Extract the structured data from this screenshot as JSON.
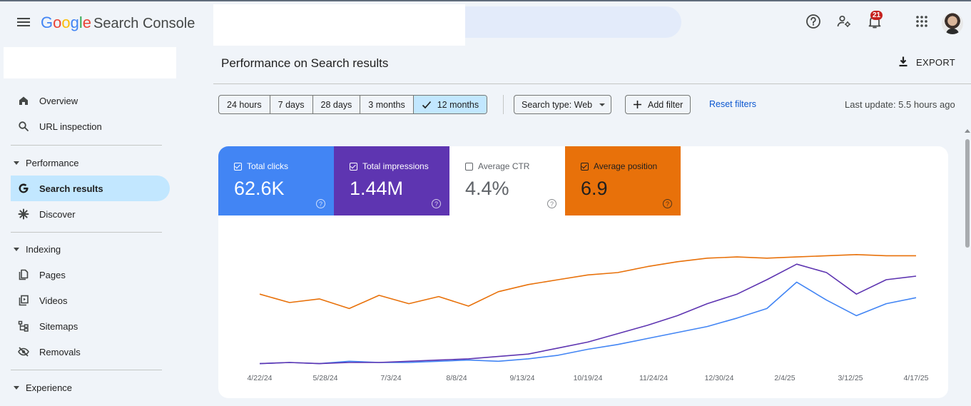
{
  "header": {
    "logo_google": "Google",
    "logo_product": "Search Console",
    "notification_count": "21"
  },
  "sidebar": {
    "items": [
      {
        "label": "Overview",
        "icon": "home-icon"
      },
      {
        "label": "URL inspection",
        "icon": "search-icon"
      }
    ],
    "sections": [
      {
        "label": "Performance",
        "items": [
          {
            "label": "Search results",
            "icon": "google-g-icon",
            "active": true
          },
          {
            "label": "Discover",
            "icon": "asterisk-icon"
          }
        ]
      },
      {
        "label": "Indexing",
        "items": [
          {
            "label": "Pages",
            "icon": "pages-icon"
          },
          {
            "label": "Videos",
            "icon": "video-icon"
          },
          {
            "label": "Sitemaps",
            "icon": "sitemap-icon"
          },
          {
            "label": "Removals",
            "icon": "eye-off-icon"
          }
        ]
      },
      {
        "label": "Experience",
        "items": []
      }
    ]
  },
  "main": {
    "title": "Performance on Search results",
    "export_label": "EXPORT",
    "date_ranges": [
      "24 hours",
      "7 days",
      "28 days",
      "3 months",
      "12 months"
    ],
    "selected_range": "12 months",
    "search_type_label": "Search type: Web",
    "add_filter_label": "Add filter",
    "reset_filters_label": "Reset filters",
    "last_update": "Last update: 5.5 hours ago"
  },
  "metrics": [
    {
      "label": "Total clicks",
      "value": "62.6K",
      "checked": true,
      "bg": "#4285f4",
      "fg": "#ffffff"
    },
    {
      "label": "Total impressions",
      "value": "1.44M",
      "checked": true,
      "bg": "#5e35b1",
      "fg": "#ffffff"
    },
    {
      "label": "Average CTR",
      "value": "4.4%",
      "checked": false,
      "bg": "#ffffff",
      "fg": "#5f6368"
    },
    {
      "label": "Average position",
      "value": "6.9",
      "checked": true,
      "bg": "#e8710a",
      "fg": "#1f1f1f"
    }
  ],
  "colors": {
    "clicks": "#4285f4",
    "impressions": "#5e35b1",
    "position": "#e8710a",
    "accent": "#0b57d0",
    "selected": "#c2e7ff"
  },
  "chart_data": {
    "type": "line",
    "x_tick_labels": [
      "4/22/24",
      "5/28/24",
      "7/3/24",
      "8/8/24",
      "9/13/24",
      "10/19/24",
      "11/24/24",
      "12/30/24",
      "2/4/25",
      "3/12/25",
      "4/17/25"
    ],
    "series": [
      {
        "name": "Total clicks",
        "color": "#4285f4",
        "values": [
          2,
          3,
          2,
          4,
          3,
          3,
          4,
          5,
          4,
          6,
          9,
          14,
          18,
          23,
          28,
          33,
          40,
          48,
          70,
          55,
          42,
          52,
          57
        ]
      },
      {
        "name": "Total impressions",
        "color": "#5e35b1",
        "values": [
          2,
          3,
          2,
          3,
          3,
          4,
          5,
          6,
          8,
          10,
          15,
          20,
          27,
          34,
          42,
          52,
          60,
          72,
          85,
          78,
          60,
          72,
          75
        ]
      },
      {
        "name": "Average position",
        "color": "#e8710a",
        "values": [
          60,
          53,
          56,
          48,
          59,
          52,
          58,
          50,
          62,
          68,
          72,
          76,
          78,
          83,
          87,
          90,
          91,
          90,
          91,
          92,
          93,
          92,
          92
        ]
      }
    ]
  }
}
